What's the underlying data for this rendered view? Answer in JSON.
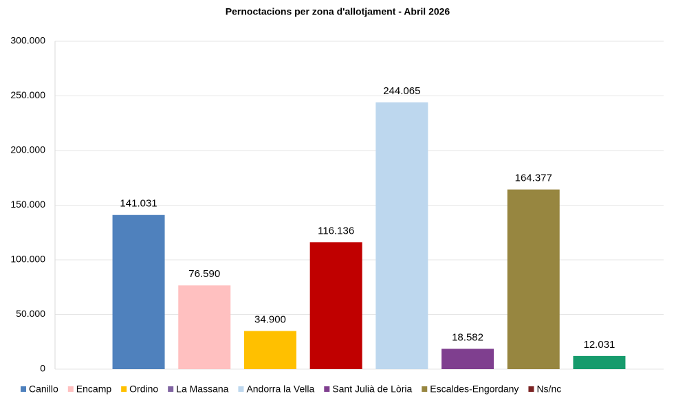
{
  "chart_data": {
    "type": "bar",
    "title": "Pernoctacions per zona d'allotjament - Abril 2026",
    "categories": [
      null,
      null,
      null,
      null,
      null,
      null,
      null,
      null,
      null
    ],
    "values": [
      null,
      141031,
      76590,
      34900,
      116136,
      244065,
      18582,
      164377,
      12031
    ],
    "value_labels": [
      null,
      "141.031",
      "76.590",
      "34.900",
      "116.136",
      "244.065",
      "18.582",
      "164.377",
      "12.031"
    ],
    "colors": [
      null,
      "#4f81bd",
      "#ffc0c0",
      "#ffc000",
      "#c00000",
      "#bdd7ee",
      "#7f3f8f",
      "#978640",
      "#169b6c"
    ],
    "legend": [
      {
        "name": "Canillo",
        "color": "#4f81bd"
      },
      {
        "name": "Encamp",
        "color": "#ffc0c0"
      },
      {
        "name": "Ordino",
        "color": "#ffc000"
      },
      {
        "name": "La Massana",
        "color": "#8064a2"
      },
      {
        "name": "Andorra la Vella",
        "color": "#bdd7ee"
      },
      {
        "name": "Sant Julià de Lòria",
        "color": "#7f3f8f"
      },
      {
        "name": "Escaldes-Engordany",
        "color": "#978640"
      },
      {
        "name": "Ns/nc",
        "color": "#7b2323"
      }
    ],
    "ylim": [
      0,
      300000
    ],
    "yticks": [
      0,
      {
        "value": 50000,
        "label": "50.000"
      },
      {
        "value": 100000,
        "label": "100.000"
      },
      {
        "value": 150000,
        "label": "150.000"
      },
      {
        "value": 200000,
        "label": "200.000"
      },
      {
        "value": 250000,
        "label": "250.000"
      },
      {
        "value": 300000,
        "label": "300.000"
      }
    ],
    "grid": true
  }
}
